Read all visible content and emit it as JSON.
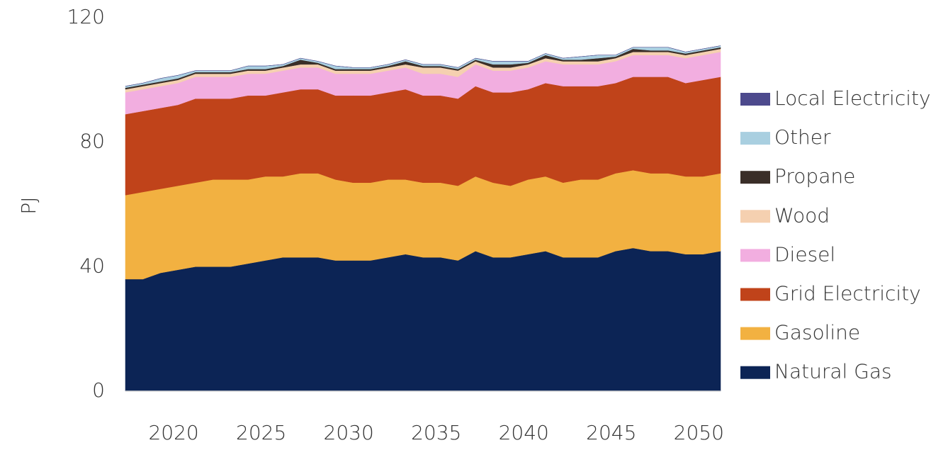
{
  "chart_data": {
    "type": "stacked_area",
    "y_label": "PJ",
    "x": [
      2017,
      2018,
      2019,
      2020,
      2021,
      2022,
      2023,
      2024,
      2025,
      2026,
      2027,
      2028,
      2029,
      2030,
      2031,
      2032,
      2033,
      2034,
      2035,
      2036,
      2037,
      2038,
      2039,
      2040,
      2041,
      2042,
      2043,
      2044,
      2045,
      2046,
      2047,
      2048,
      2049,
      2050,
      2051
    ],
    "xlim": [
      2017,
      2051
    ],
    "xticks": [
      2020,
      2025,
      2030,
      2035,
      2040,
      2045,
      2050
    ],
    "ylim": [
      0,
      120
    ],
    "yticks": [
      0,
      40,
      80,
      120
    ],
    "grid": false,
    "legend": "right",
    "series": [
      {
        "name": "Natural Gas",
        "color": "#0c2455",
        "values": [
          36,
          36,
          38,
          39,
          40,
          40,
          40,
          41,
          42,
          43,
          43,
          43,
          42,
          42,
          42,
          43,
          44,
          43,
          43,
          42,
          45,
          43,
          43,
          44,
          45,
          43,
          43,
          43,
          45,
          46,
          45,
          45,
          44,
          44,
          45
        ]
      },
      {
        "name": "Gasoline",
        "color": "#f2b141",
        "values": [
          27,
          28,
          27,
          27,
          27,
          28,
          28,
          27,
          27,
          26,
          27,
          27,
          26,
          25,
          25,
          25,
          24,
          24,
          24,
          24,
          24,
          24,
          23,
          24,
          24,
          24,
          25,
          25,
          25,
          25,
          25,
          25,
          25,
          25,
          25
        ]
      },
      {
        "name": "Grid Electricity",
        "color": "#c0431a",
        "values": [
          26,
          26,
          26,
          26,
          27,
          26,
          26,
          27,
          26,
          27,
          27,
          27,
          27,
          28,
          28,
          28,
          29,
          28,
          28,
          28,
          29,
          29,
          30,
          29,
          30,
          31,
          30,
          30,
          29,
          30,
          31,
          31,
          30,
          31,
          31
        ]
      },
      {
        "name": "Diesel",
        "color": "#f2aee0",
        "values": [
          7,
          7,
          7,
          7,
          7,
          7,
          7,
          7,
          7,
          7,
          7,
          7,
          7,
          7,
          7,
          7,
          7,
          7,
          7,
          7,
          7,
          7,
          7,
          7,
          7,
          7,
          7,
          7,
          7,
          7,
          7,
          7,
          8,
          8,
          8
        ]
      },
      {
        "name": "Wood",
        "color": "#f5d0b0",
        "values": [
          1,
          1,
          1,
          1,
          1,
          1,
          1,
          1,
          1,
          1,
          1,
          1,
          1,
          1,
          1,
          1,
          1,
          2,
          2,
          2,
          1,
          1,
          1,
          1,
          1,
          1,
          1,
          1,
          1,
          1,
          1,
          1,
          1,
          1,
          1
        ]
      },
      {
        "name": "Propane",
        "color": "#3a2e28",
        "values": [
          0.5,
          0.5,
          0.5,
          0.5,
          0.5,
          0.5,
          0.5,
          0.5,
          0.5,
          0.5,
          1.5,
          0.5,
          0.5,
          0.5,
          0.5,
          0.5,
          1,
          0.5,
          0.5,
          0.5,
          0.5,
          1,
          1,
          0.5,
          1,
          0.5,
          0.5,
          1,
          0.5,
          1,
          0.5,
          0.5,
          0.5,
          0.5,
          0.5
        ]
      },
      {
        "name": "Other",
        "color": "#a9cfe0",
        "values": [
          0.5,
          0.5,
          1,
          1,
          0.5,
          0.5,
          0.5,
          1,
          1,
          0.5,
          0.5,
          0.5,
          1,
          0.5,
          0.5,
          0.5,
          0.5,
          0.5,
          0.5,
          0.5,
          0.5,
          1,
          1,
          0.5,
          0.5,
          0.5,
          1,
          1,
          0.5,
          0.5,
          1,
          1,
          0.5,
          0.5,
          0.5
        ]
      },
      {
        "name": "Local Electricity",
        "color": "#4d4a8d",
        "values": [
          0,
          0,
          0,
          0,
          0,
          0,
          0,
          0,
          0,
          0,
          0,
          0,
          0,
          0,
          0,
          0,
          0,
          0,
          0,
          0,
          0,
          0,
          0,
          0,
          0,
          0,
          0,
          0,
          0,
          0,
          0,
          0,
          0,
          0,
          0
        ]
      }
    ]
  }
}
